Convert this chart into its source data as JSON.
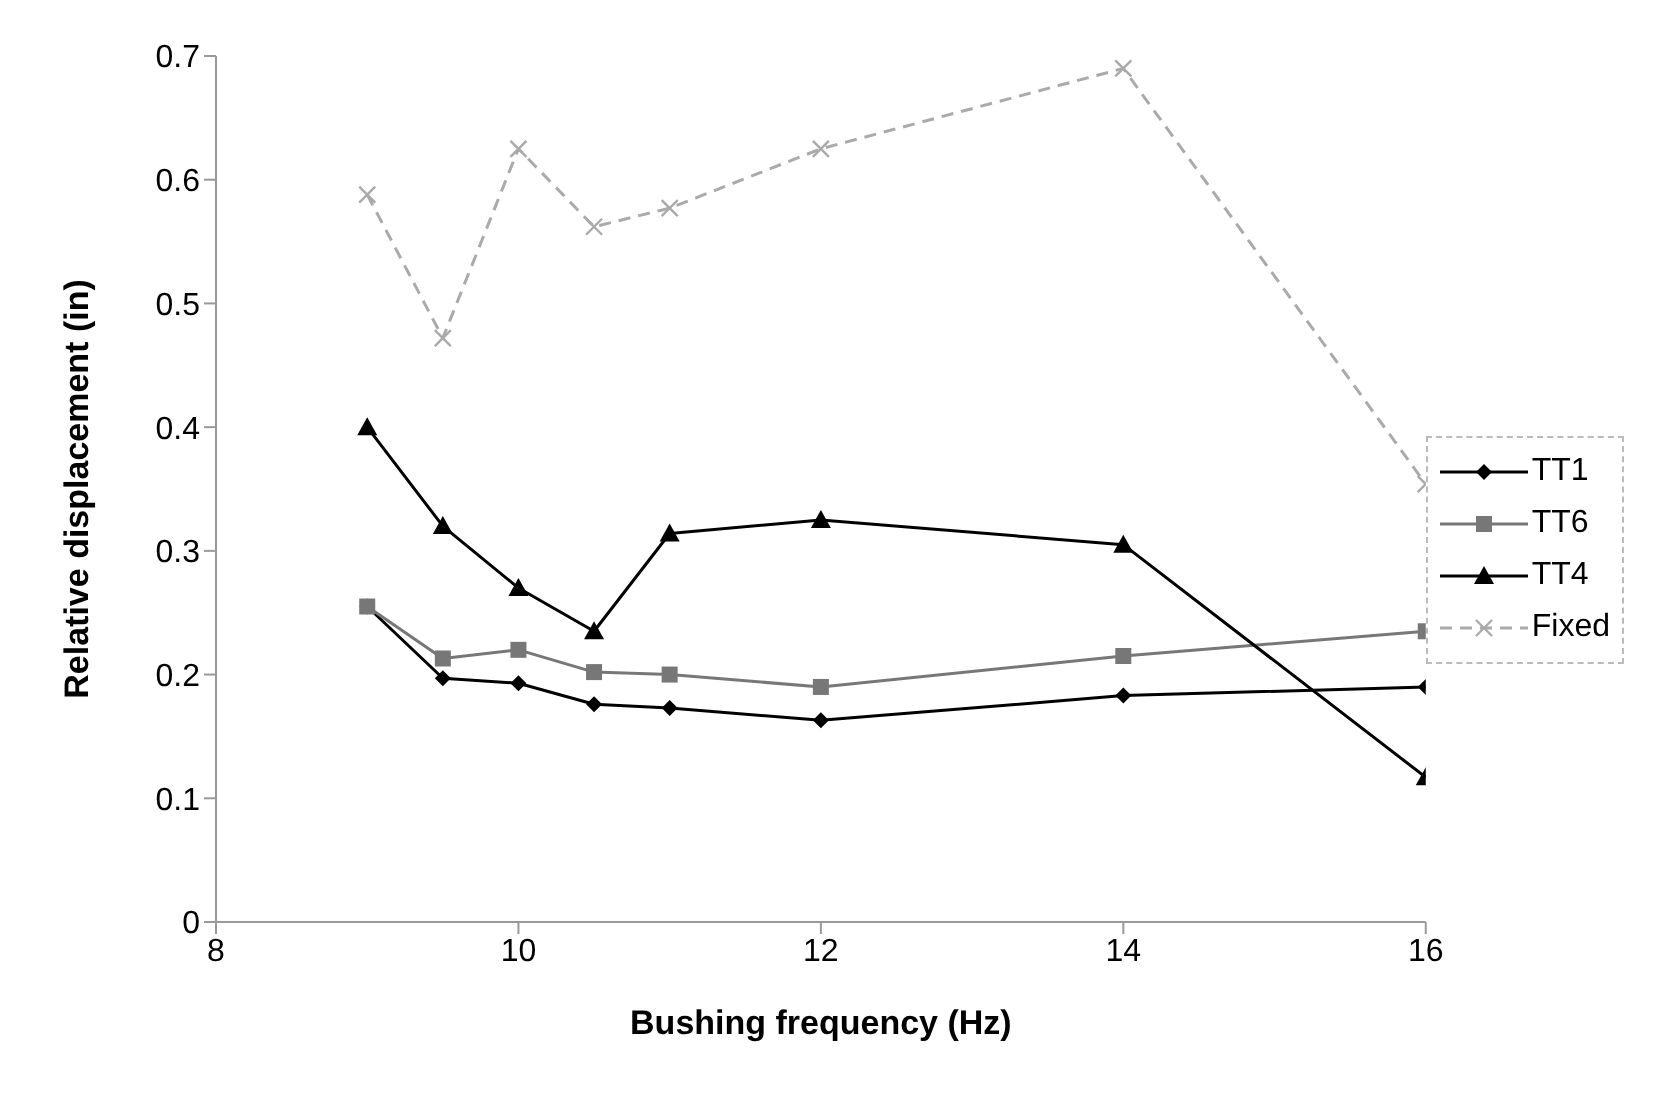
{
  "chart_data": {
    "type": "line",
    "xlabel": "Bushing frequency (Hz)",
    "ylabel": "Relative displacement (in)",
    "x": [
      9,
      9.5,
      10,
      10.5,
      11,
      12,
      14,
      16
    ],
    "series": [
      {
        "name": "TT1",
        "color": "#000000",
        "marker": "diamond",
        "line_style": "solid",
        "values": [
          0.255,
          0.197,
          0.193,
          0.176,
          0.173,
          0.163,
          0.183,
          0.19
        ]
      },
      {
        "name": "TT6",
        "color": "#777777",
        "marker": "square",
        "line_style": "solid",
        "values": [
          0.255,
          0.213,
          0.22,
          0.202,
          0.2,
          0.19,
          0.215,
          0.235
        ]
      },
      {
        "name": "TT4",
        "color": "#000000",
        "marker": "triangle",
        "line_style": "solid",
        "values": [
          0.4,
          0.32,
          0.27,
          0.235,
          0.314,
          0.325,
          0.305,
          0.117
        ]
      },
      {
        "name": "Fixed",
        "color": "#aaaaaa",
        "marker": "cross",
        "line_style": "dashed",
        "values": [
          0.588,
          0.472,
          0.625,
          0.562,
          0.577,
          0.625,
          0.69,
          0.354
        ]
      }
    ],
    "xlim": [
      8,
      16
    ],
    "xticks": [
      8,
      10,
      12,
      14,
      16
    ],
    "ylim": [
      0,
      0.7
    ],
    "yticks": [
      0,
      0.1,
      0.2,
      0.3,
      0.4,
      0.5,
      0.6,
      0.7
    ],
    "grid": false,
    "legend": "right"
  }
}
